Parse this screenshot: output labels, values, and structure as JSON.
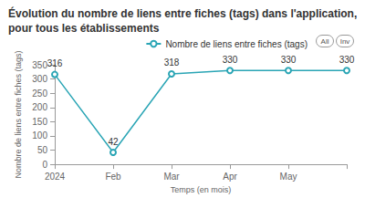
{
  "chart_data": {
    "type": "line",
    "title": "Évolution du nombre de liens entre fiches (tags) dans l'application, pour tous les établissements",
    "x_label": "Temps (en mois)",
    "y_label": "Nombre de liens entre fiches (tags)",
    "categories": [
      "2024",
      "Feb",
      "Mar",
      "Apr",
      "May",
      null
    ],
    "series": [
      {
        "name": "Nombre de liens entre fiches (tags)",
        "color": "#2aa5b5",
        "values": [
          316,
          42,
          318,
          330,
          330,
          330
        ],
        "marker": "circle"
      }
    ],
    "annotations": [
      "All",
      "Inv"
    ],
    "ylim": [
      0,
      350
    ],
    "yticks": [
      0,
      50,
      100,
      150,
      200,
      250,
      300,
      350
    ],
    "grid": false,
    "data_labels": true,
    "legend": "top-right"
  }
}
